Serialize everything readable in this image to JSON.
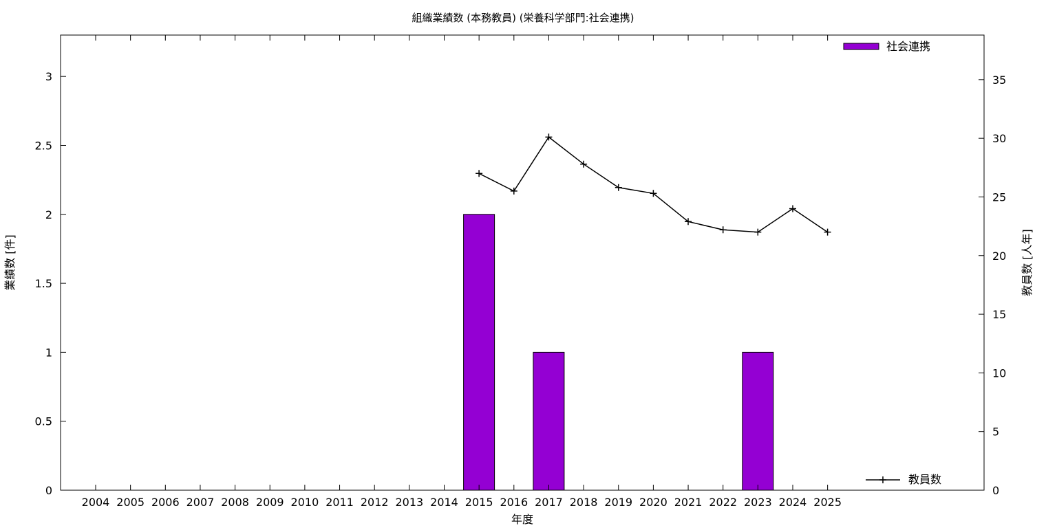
{
  "chart_data": {
    "type": "bar",
    "title": "組織業績数 (本務教員) (栄養科学部門:社会連携)",
    "xlabel": "年度",
    "ylabel": "業績数 [件]",
    "y2label": "教員数 [人年]",
    "categories": [
      "2004",
      "2005",
      "2006",
      "2007",
      "2008",
      "2009",
      "2010",
      "2011",
      "2012",
      "2013",
      "2014",
      "2015",
      "2016",
      "2017",
      "2018",
      "2019",
      "2020",
      "2021",
      "2022",
      "2023",
      "2024",
      "2025"
    ],
    "ylim": [
      0,
      3.3
    ],
    "y_ticks": [
      "0",
      "0.5",
      "1",
      "1.5",
      "2",
      "2.5",
      "3"
    ],
    "y2lim": [
      0,
      38.8
    ],
    "y2_ticks": [
      "0",
      "5",
      "10",
      "15",
      "20",
      "25",
      "30",
      "35"
    ],
    "grid": false,
    "series": [
      {
        "name": "社会連携",
        "type": "bar",
        "axis": "left",
        "color": "#9400d3",
        "values": [
          0,
          0,
          0,
          0,
          0,
          0,
          0,
          0,
          0,
          0,
          0,
          2,
          0,
          1,
          0,
          0,
          0,
          0,
          0,
          1,
          0,
          0
        ]
      },
      {
        "name": "教員数",
        "type": "line",
        "axis": "right",
        "color": "#000000",
        "values": [
          null,
          null,
          null,
          null,
          null,
          null,
          null,
          null,
          null,
          null,
          null,
          27.0,
          25.5,
          30.1,
          27.8,
          25.8,
          25.3,
          22.9,
          22.2,
          22.0,
          24.0,
          22.0
        ]
      }
    ],
    "legend": [
      {
        "label": "社会連携",
        "placement": "top-right"
      },
      {
        "label": "教員数",
        "placement": "bottom-right"
      }
    ]
  }
}
